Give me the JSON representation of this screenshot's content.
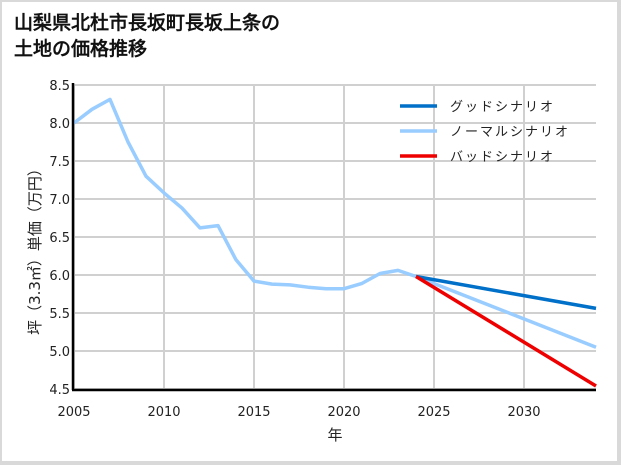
{
  "title": "山梨県北杜市長坂町長坂上条の\n土地の価格推移",
  "chart_data": {
    "type": "line",
    "title": "山梨県北杜市長坂町長坂上条の土地の価格推移",
    "xlabel": "年",
    "ylabel": "坪（3.3㎡）単価（万円）",
    "xlim": [
      2005,
      2034
    ],
    "ylim": [
      4.5,
      8.5
    ],
    "x_ticks": [
      2005,
      2010,
      2015,
      2020,
      2025,
      2030
    ],
    "y_ticks": [
      4.5,
      5.0,
      5.5,
      6.0,
      6.5,
      7.0,
      7.5,
      8.0,
      8.5
    ],
    "grid": true,
    "legend_position": "upper right",
    "series": [
      {
        "name": "グッドシナリオ",
        "color": "#0070c8",
        "x": [
          2024,
          2034
        ],
        "values": [
          5.98,
          5.56
        ]
      },
      {
        "name": "ノーマルシナリオ",
        "color": "#99ccff",
        "x": [
          2005,
          2006,
          2007,
          2008,
          2009,
          2010,
          2011,
          2012,
          2013,
          2014,
          2015,
          2016,
          2017,
          2018,
          2019,
          2020,
          2021,
          2022,
          2023,
          2024,
          2034
        ],
        "values": [
          8.0,
          8.18,
          8.31,
          7.75,
          7.3,
          7.08,
          6.88,
          6.62,
          6.65,
          6.2,
          5.92,
          5.88,
          5.87,
          5.84,
          5.82,
          5.82,
          5.89,
          6.02,
          6.06,
          5.98,
          5.05
        ]
      },
      {
        "name": "バッドシナリオ",
        "color": "#ee0000",
        "x": [
          2024,
          2034
        ],
        "values": [
          5.98,
          4.54
        ]
      }
    ]
  },
  "legend": {
    "items": [
      {
        "label": "グッドシナリオ",
        "color": "#0070c8"
      },
      {
        "label": "ノーマルシナリオ",
        "color": "#99ccff"
      },
      {
        "label": "バッドシナリオ",
        "color": "#ee0000"
      }
    ]
  },
  "axes": {
    "xlabel": "年",
    "ylabel": "坪（3.3㎡）単価（万円）"
  }
}
